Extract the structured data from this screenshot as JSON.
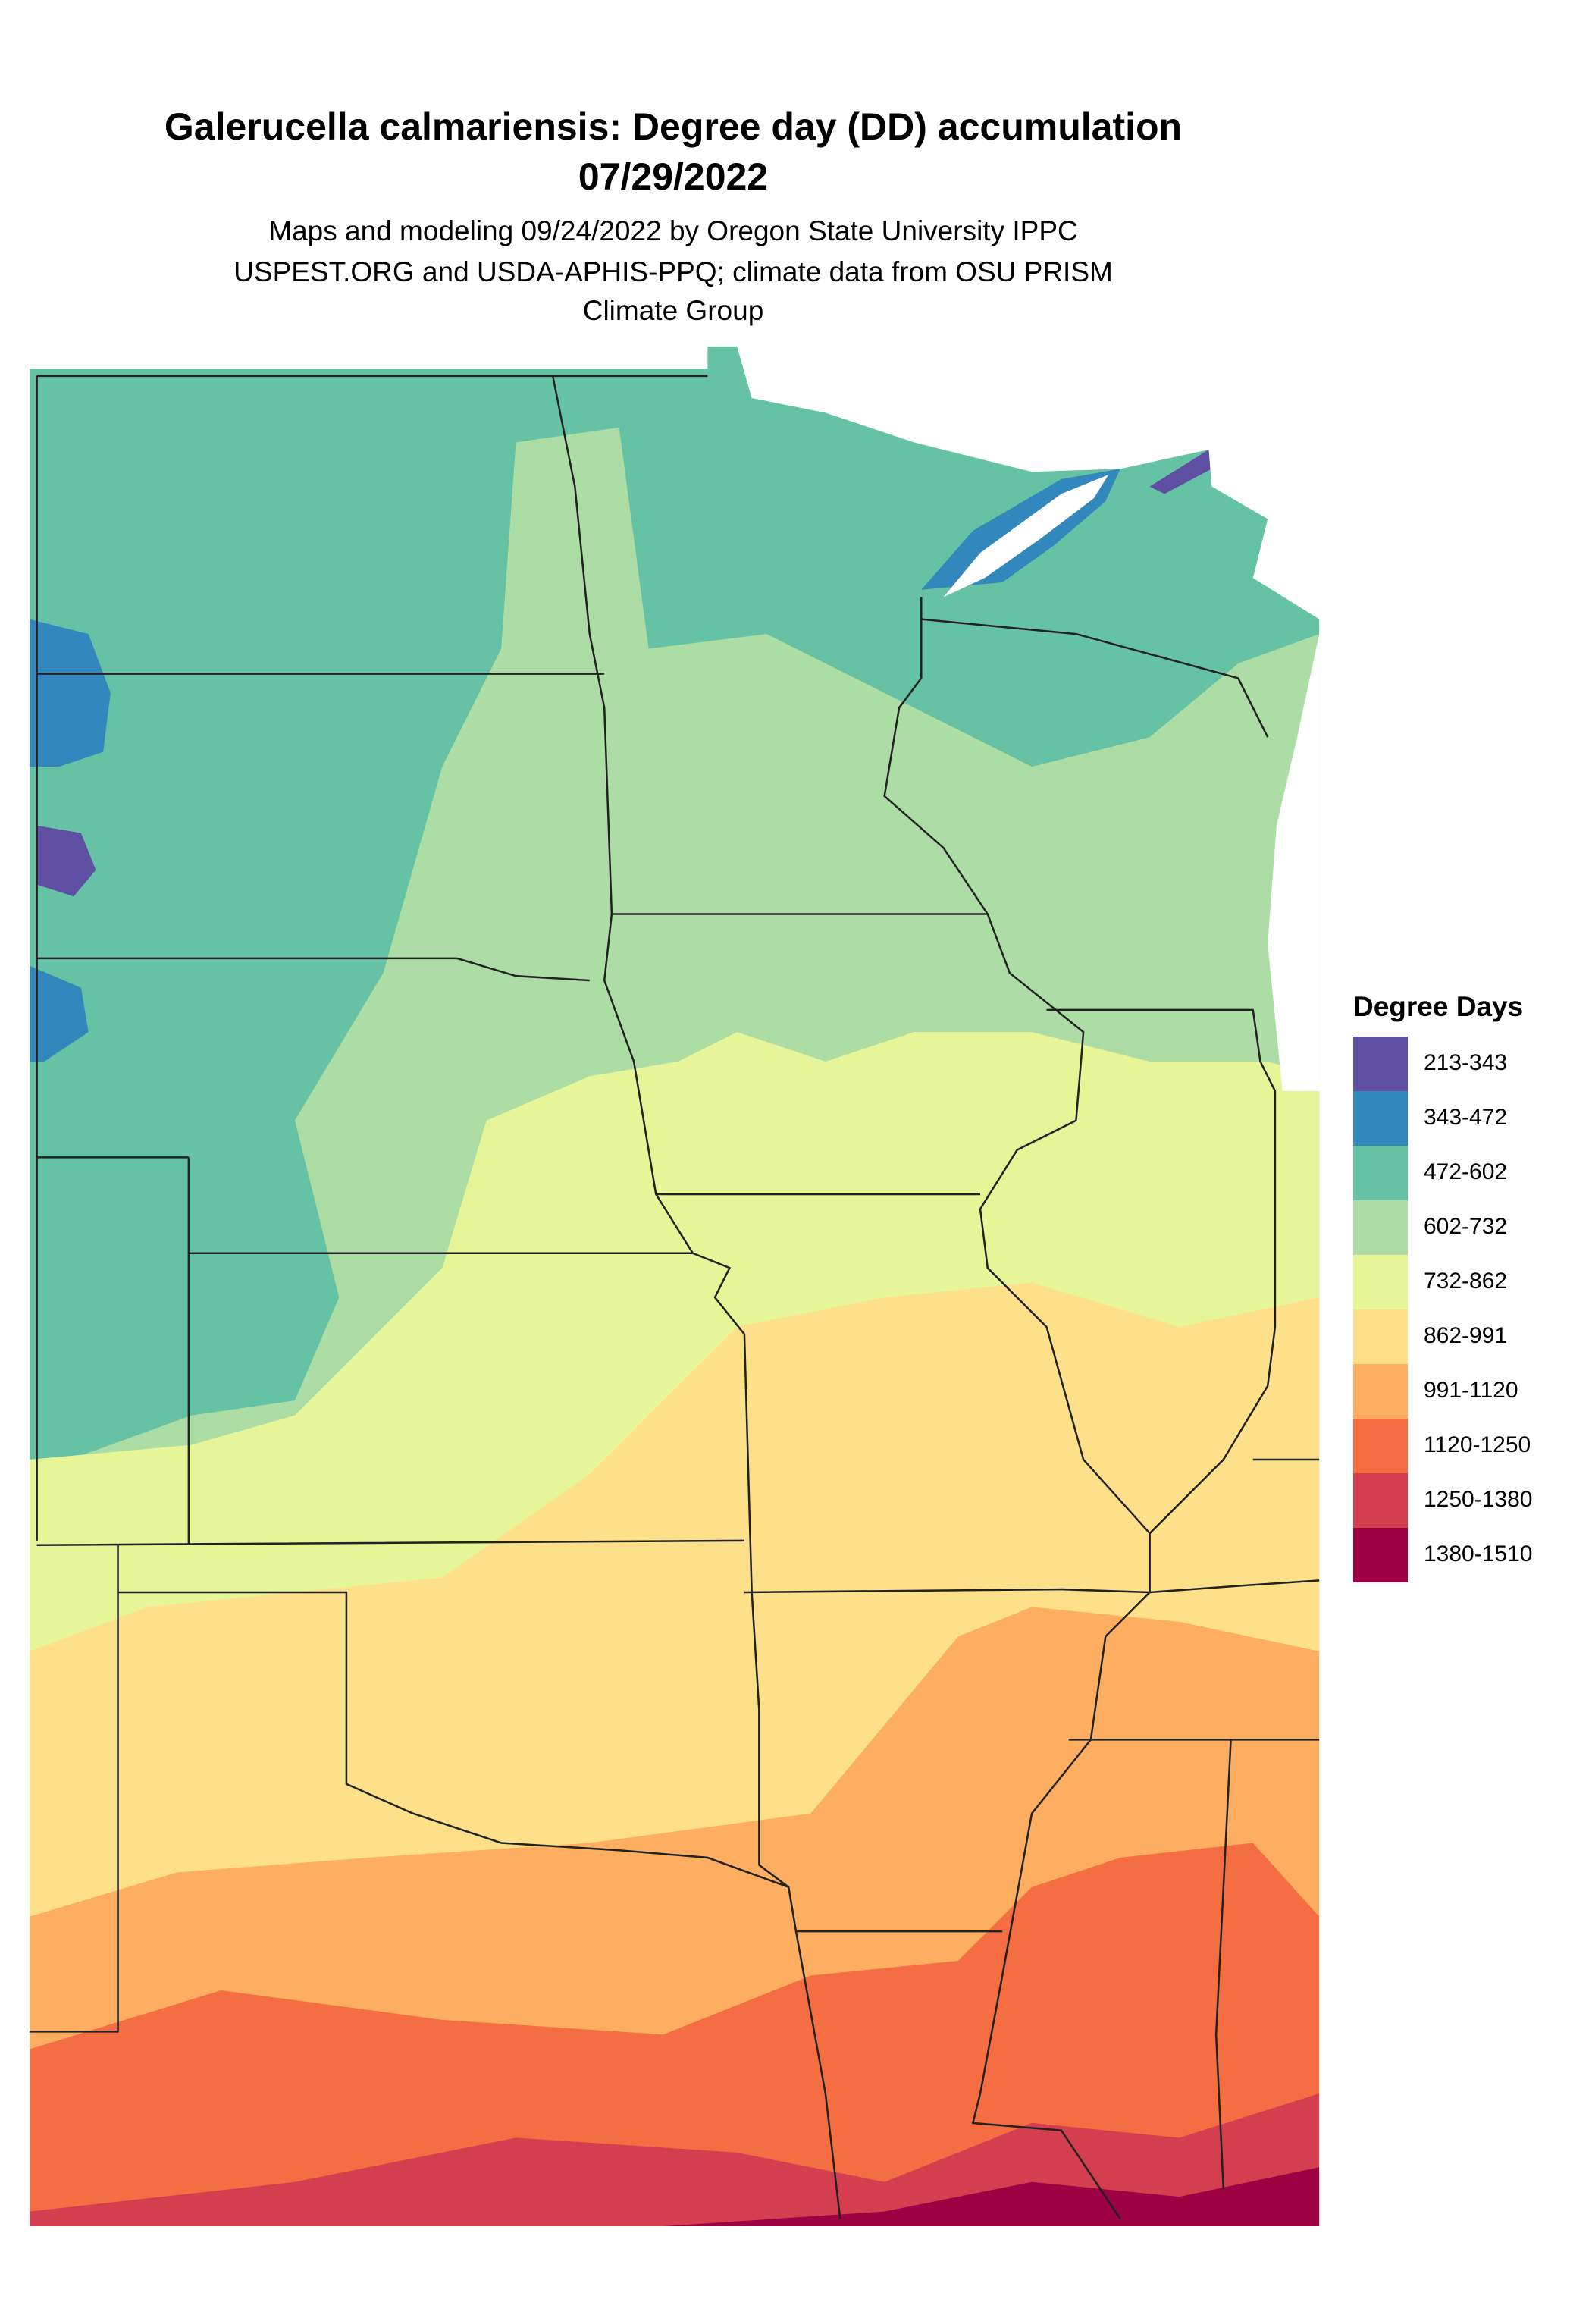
{
  "title": "Galerucella calmariensis: Degree day (DD) accumulation",
  "date": "07/29/2022",
  "subtitle": [
    "Maps and modeling 09/24/2022 by Oregon State University IPPC",
    "USPEST.ORG and USDA-APHIS-PPQ; climate data from OSU PRISM",
    "Climate Group"
  ],
  "legend": {
    "title": "Degree Days",
    "items": [
      {
        "label": "213-343",
        "color": "#5e4fa2"
      },
      {
        "label": "343-472",
        "color": "#3288bd"
      },
      {
        "label": "472-602",
        "color": "#66c2a5"
      },
      {
        "label": "602-732",
        "color": "#abdda4"
      },
      {
        "label": "732-862",
        "color": "#e6f598"
      },
      {
        "label": "862-991",
        "color": "#fee08b"
      },
      {
        "label": "991-1120",
        "color": "#fdae61"
      },
      {
        "label": "1120-1250",
        "color": "#f46d43"
      },
      {
        "label": "1250-1380",
        "color": "#d53e4f"
      },
      {
        "label": "1380-1510",
        "color": "#9e0142"
      }
    ]
  }
}
